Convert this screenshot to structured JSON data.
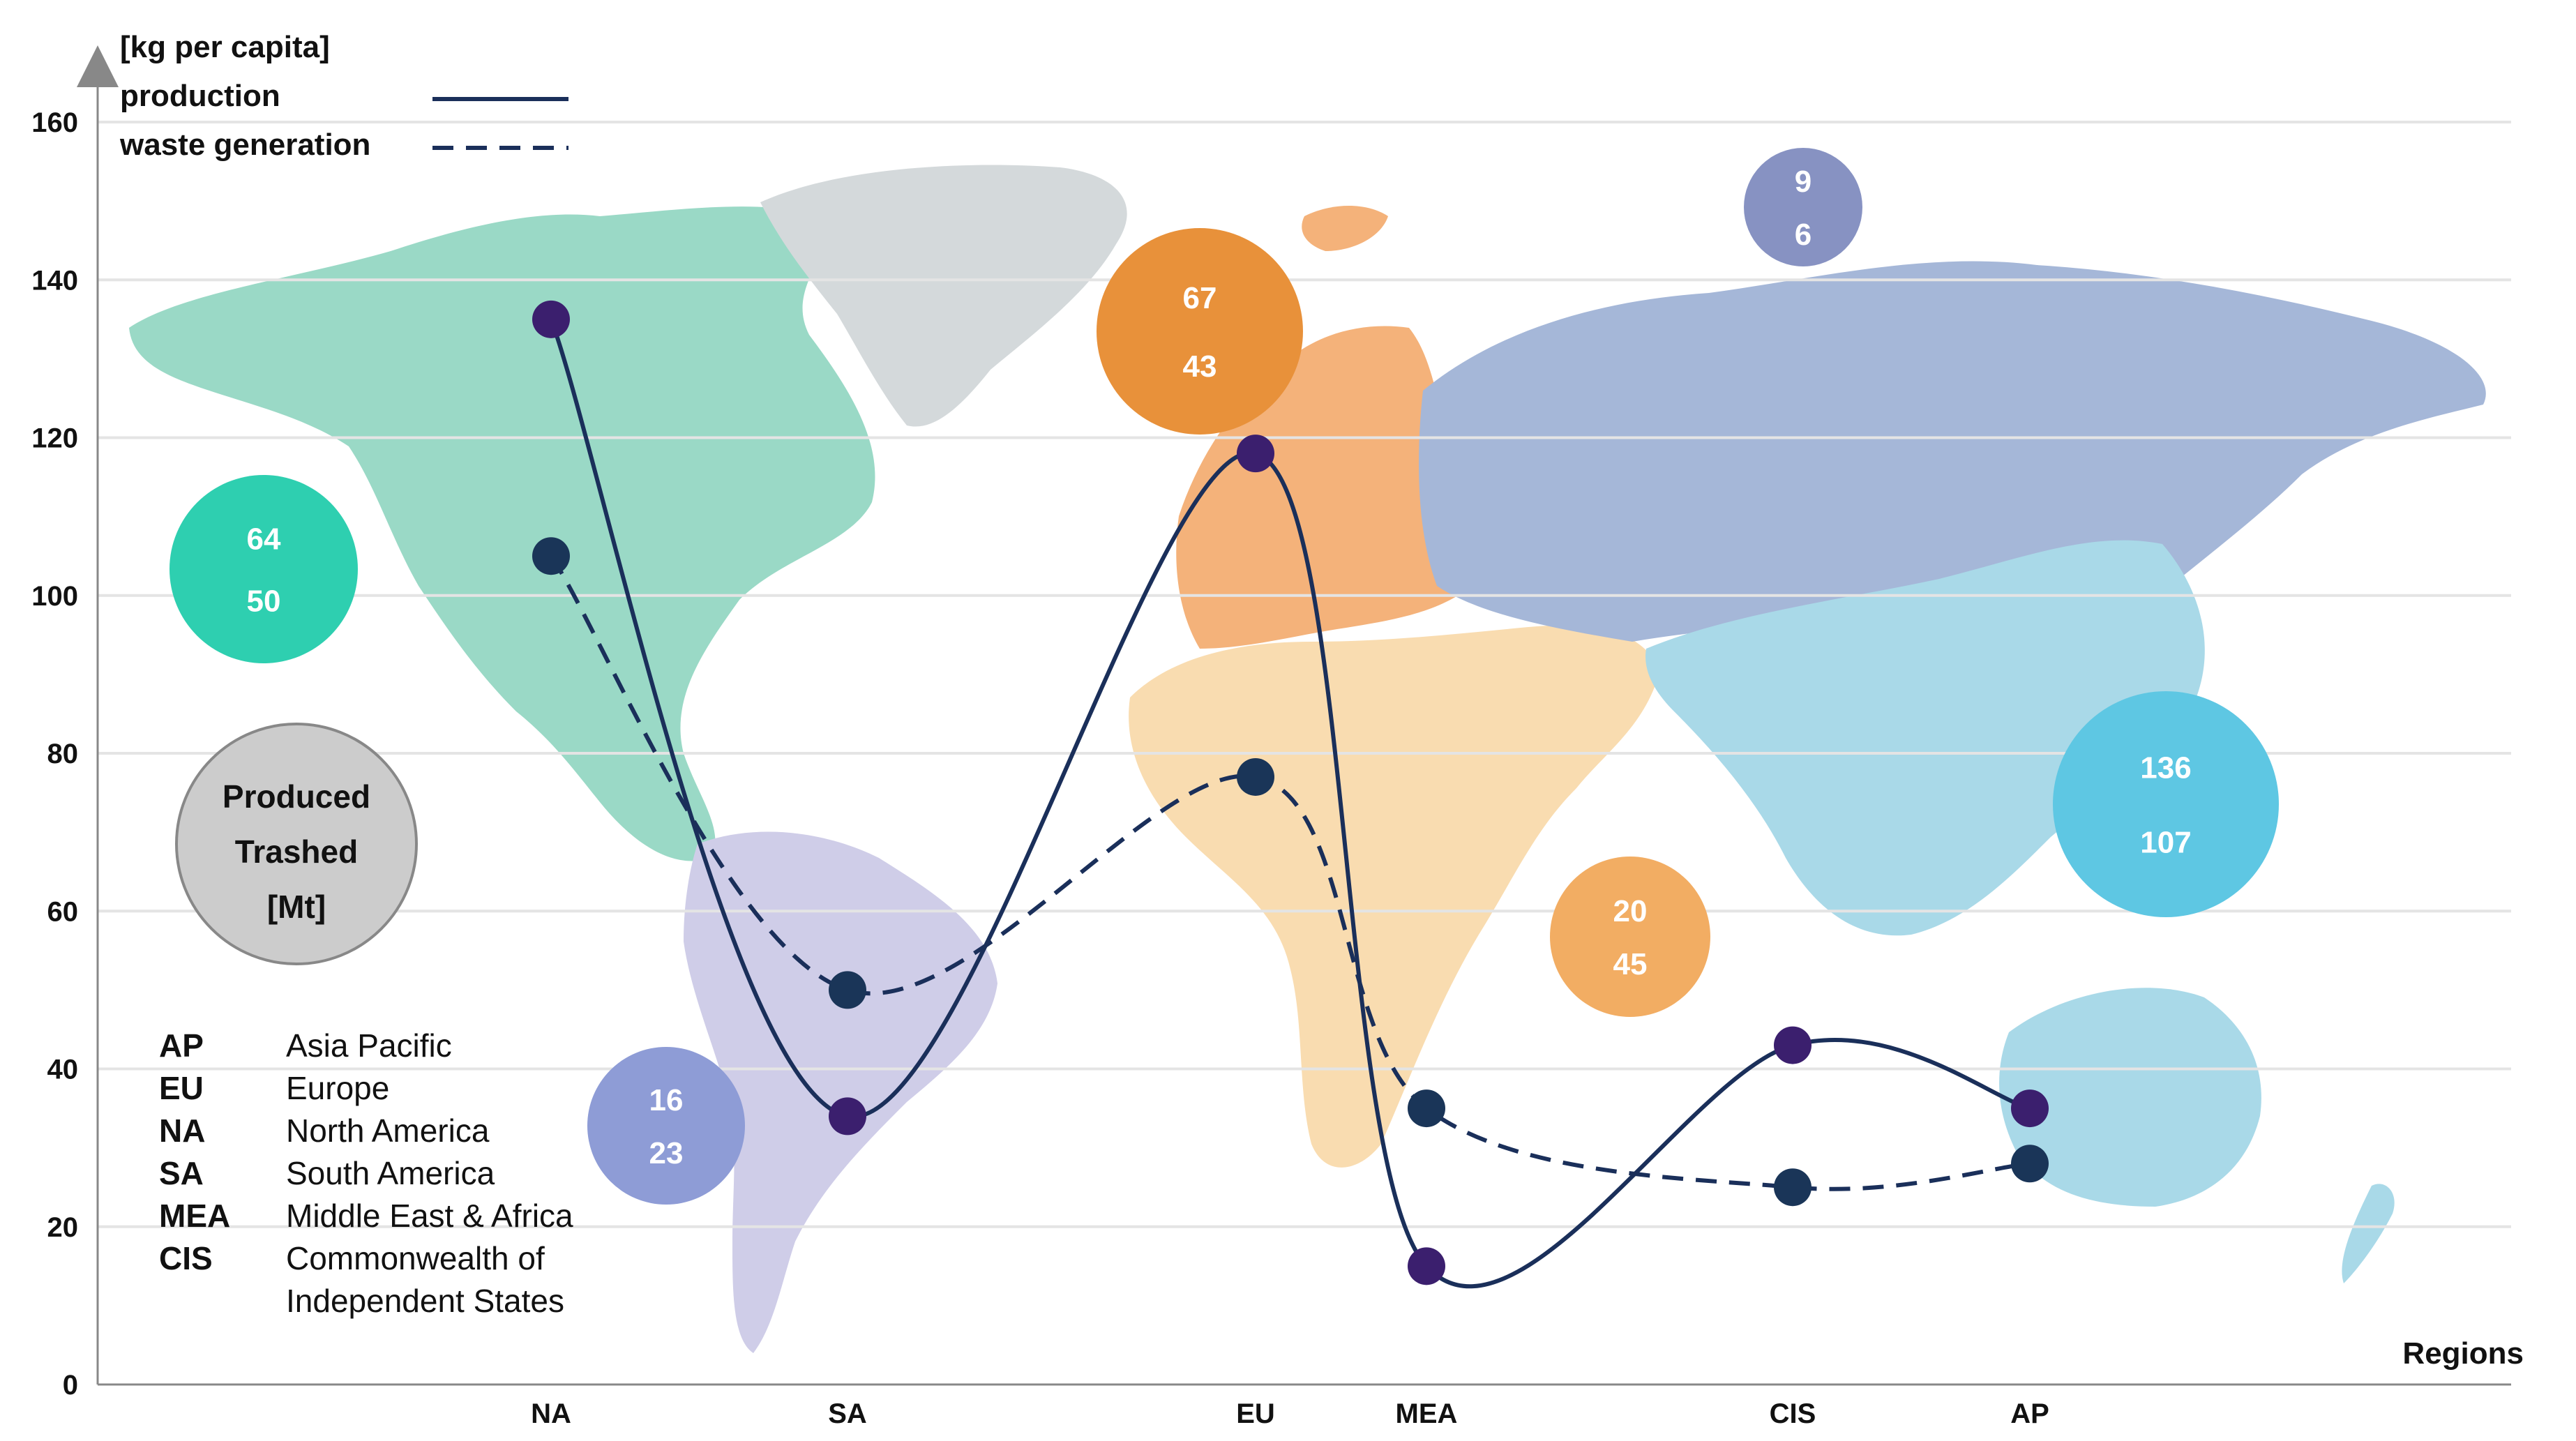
{
  "chart_data": {
    "type": "line",
    "ylabel": "[kg per capita]",
    "xlabel": "Regions",
    "ylim": [
      0,
      160
    ],
    "yticks": [
      0,
      20,
      40,
      60,
      80,
      100,
      120,
      140,
      160
    ],
    "grid": true,
    "legend_position": "top-left",
    "categories": [
      "NA",
      "SA",
      "EU",
      "MEA",
      "CIS",
      "AP"
    ],
    "series": [
      {
        "name": "production",
        "style": "solid",
        "color": "#1a2f5a",
        "marker_color": "#3b1f6e",
        "values": [
          135,
          34,
          118,
          15,
          43,
          35
        ]
      },
      {
        "name": "waste generation",
        "style": "dashed",
        "color": "#1a2f5a",
        "marker_color": "#1a3558",
        "values": [
          105,
          50,
          77,
          35,
          25,
          28
        ]
      }
    ],
    "bubbles_key": [
      "Produced",
      "Trashed",
      "[Mt]"
    ],
    "bubbles": [
      {
        "region": "NA",
        "produced": "64",
        "trashed": "50",
        "color": "#2ecfb0"
      },
      {
        "region": "SA",
        "produced": "16",
        "trashed": "23",
        "color": "#8e9cd6"
      },
      {
        "region": "EU",
        "produced": "67",
        "trashed": "43",
        "color": "#e8913a"
      },
      {
        "region": "MEA",
        "produced": "20",
        "trashed": "45",
        "color": "#f2ad63"
      },
      {
        "region": "CIS",
        "produced": "9",
        "trashed": "6",
        "color": "#8792c2"
      },
      {
        "region": "AP",
        "produced": "136",
        "trashed": "107",
        "color": "#5ec7e3"
      }
    ],
    "abbreviations": [
      {
        "code": "AP",
        "name": [
          "Asia Pacific"
        ]
      },
      {
        "code": "EU",
        "name": [
          "Europe"
        ]
      },
      {
        "code": "NA",
        "name": [
          "North America"
        ]
      },
      {
        "code": "SA",
        "name": [
          "South America"
        ]
      },
      {
        "code": "MEA",
        "name": [
          "Middle East & Africa"
        ]
      },
      {
        "code": "CIS",
        "name": [
          "Commonwealth of",
          "Independent States"
        ]
      }
    ],
    "map_colors": {
      "north_america": "#9ad9c6",
      "greenland": "#d4d9db",
      "south_america": "#cfcde8",
      "europe": "#f4b27a",
      "africa_middle_east": "#f9dcb0",
      "russia_cis": "#a5b7d8",
      "asia_pacific": "#a9d9e8"
    }
  }
}
